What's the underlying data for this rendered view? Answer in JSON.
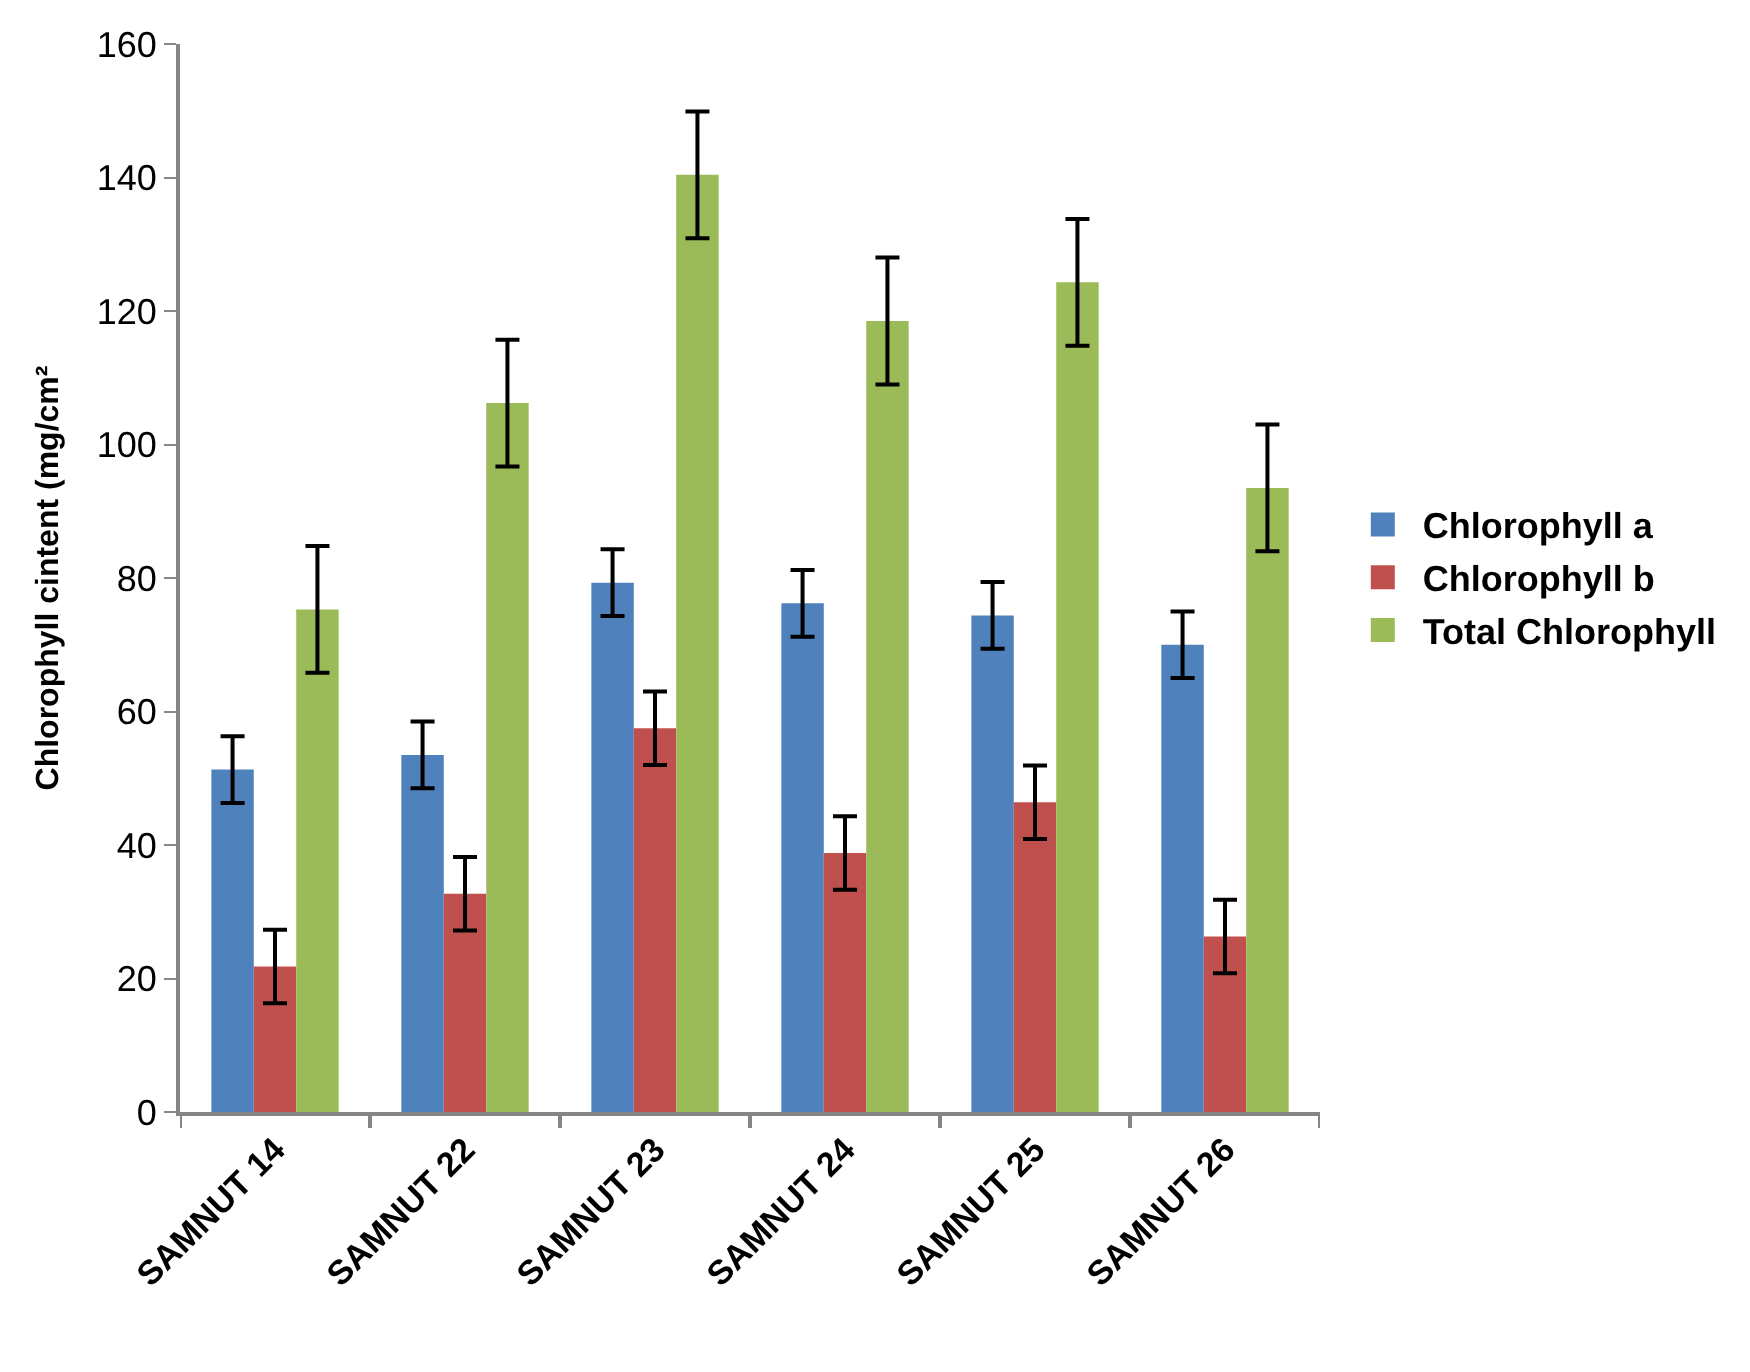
{
  "chart_data": {
    "type": "bar",
    "ylabel": "Chlorophyll cintent (mg/cm²",
    "categories": [
      "SAMNUT 14",
      "SAMNUT 22",
      "SAMNUT 23",
      "SAMNUT 24",
      "SAMNUT 25",
      "SAMNUT 26"
    ],
    "series": [
      {
        "name": "Chlorophyll a",
        "color": "#4f81bd",
        "values": [
          51.3,
          53.5,
          79.3,
          76.2,
          74.4,
          70.0
        ],
        "errors": [
          5,
          5,
          5,
          5,
          5,
          5
        ]
      },
      {
        "name": "Chlorophyll b",
        "color": "#c0504d",
        "values": [
          21.8,
          32.7,
          57.5,
          38.8,
          46.4,
          26.3
        ],
        "errors": [
          5.5,
          5.5,
          5.5,
          5.5,
          5.5,
          5.5
        ]
      },
      {
        "name": "Total Chlorophyll",
        "color": "#9bbb59",
        "values": [
          75.3,
          106.2,
          140.4,
          118.5,
          124.3,
          93.5
        ],
        "errors": [
          9.5,
          9.5,
          9.5,
          9.5,
          9.5,
          9.5
        ]
      }
    ],
    "ylim": [
      0,
      160
    ],
    "yticks": [
      0,
      20,
      40,
      60,
      80,
      100,
      120,
      140,
      160
    ],
    "legend": "right"
  }
}
